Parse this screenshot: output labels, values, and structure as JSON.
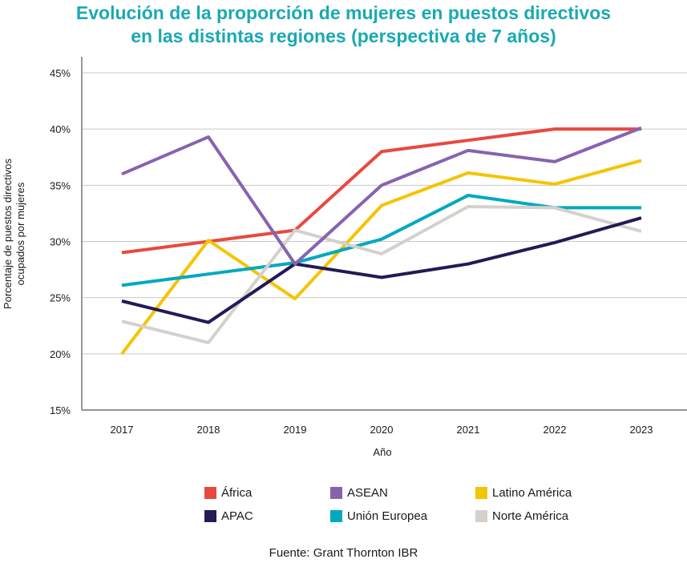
{
  "title_line1": "Evolución de la proporción de mujeres en puestos directivos",
  "title_line2": "en las distintas regiones (perspectiva de 7 años)",
  "title_color": "#1aa9b3",
  "source": "Fuente: Grant Thornton IBR",
  "chart_data": {
    "type": "line",
    "x": [
      "2017",
      "2018",
      "2019",
      "2020",
      "2021",
      "2022",
      "2023"
    ],
    "xlabel": "Año",
    "ylabel": "Porcentaje de puestos directivos ocupados por mujeres",
    "ylabel_lines": [
      "Porcentaje de puestos directivos",
      "ocupados por mujeres"
    ],
    "ylim": [
      15,
      45
    ],
    "yticks": [
      15,
      20,
      25,
      30,
      35,
      40,
      45
    ],
    "ytick_labels": [
      "15%",
      "20%",
      "25%",
      "30%",
      "35%",
      "40%",
      "45%"
    ],
    "grid": "horizontal",
    "legend_position": "bottom",
    "series": [
      {
        "name": "África",
        "color": "#e8493f",
        "values": [
          29,
          30,
          31,
          38,
          39,
          40,
          40
        ]
      },
      {
        "name": "ASEAN",
        "color": "#8663b0",
        "values": [
          36,
          39.3,
          28,
          35,
          38.1,
          37.1,
          40.1
        ]
      },
      {
        "name": "Latino América",
        "color": "#f5c400",
        "values": [
          20,
          30.1,
          24.9,
          33.2,
          36.1,
          35.1,
          37.2
        ]
      },
      {
        "name": "APAC",
        "color": "#241a54",
        "values": [
          24.7,
          22.8,
          28,
          26.8,
          28,
          29.9,
          32.1
        ]
      },
      {
        "name": "Unión Europea",
        "color": "#00a9bf",
        "values": [
          26.1,
          27.1,
          28.1,
          30.2,
          34.1,
          33,
          33
        ]
      },
      {
        "name": "Norte América",
        "color": "#d5d0cb",
        "values": [
          22.9,
          21,
          31,
          28.9,
          33.1,
          33,
          30.9
        ]
      }
    ]
  }
}
